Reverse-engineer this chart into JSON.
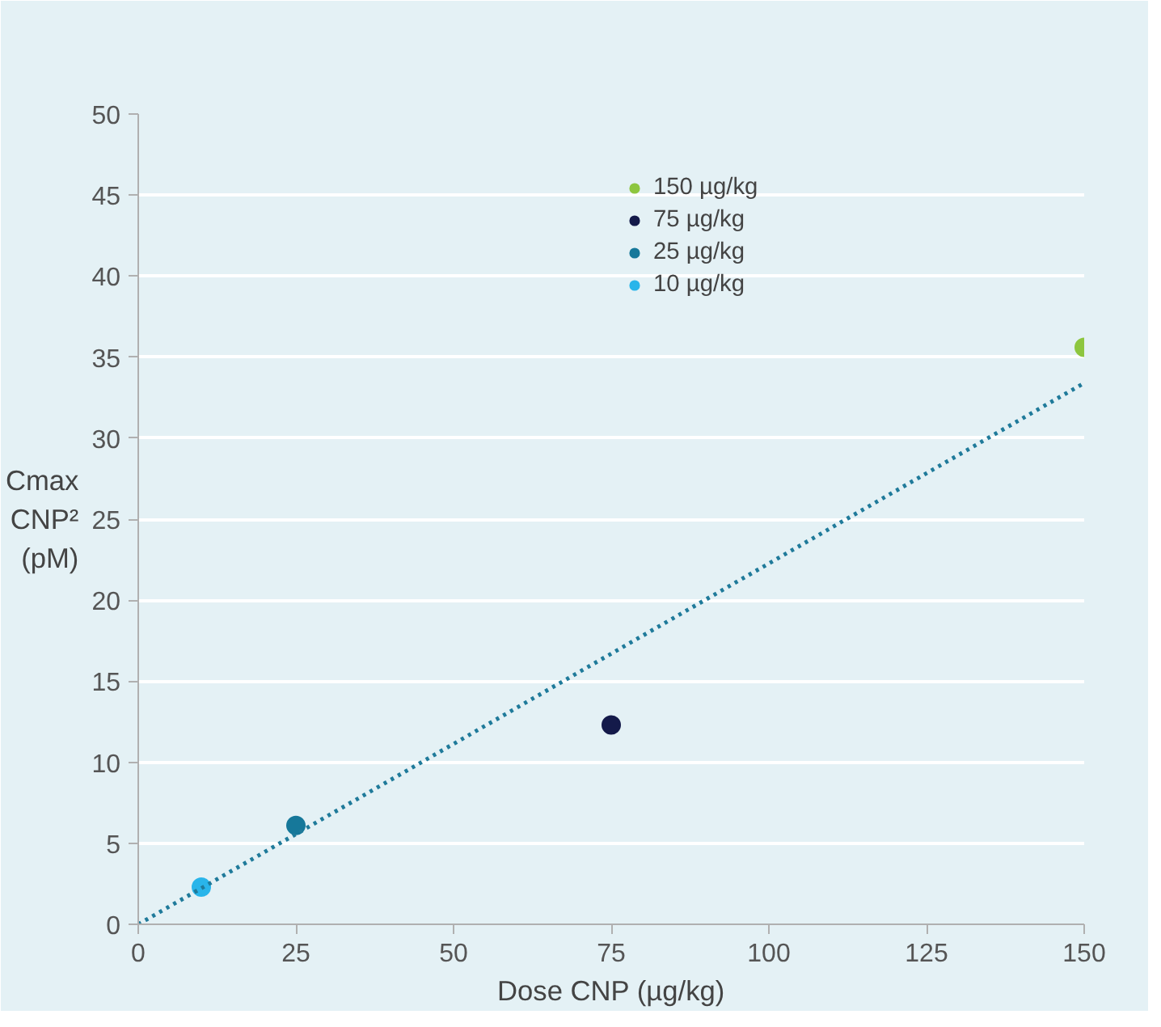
{
  "chart_data": {
    "type": "scatter",
    "xlabel": "Dose CNP (µg/kg)",
    "ylabel": "Cmax\nCNP²\n(pM)",
    "xlim": [
      0,
      150
    ],
    "xticks": [
      0,
      25,
      50,
      75,
      100,
      125,
      150
    ],
    "ylim": [
      0,
      50
    ],
    "yticks": [
      0,
      5,
      10,
      15,
      20,
      25,
      30,
      35,
      40,
      45,
      50
    ],
    "grid": "y",
    "legend": "top right",
    "marker": "circle",
    "series": [
      {
        "name": "150 µg/kg",
        "color": "#8dc63f",
        "x": [
          150
        ],
        "values": [
          35.6
        ]
      },
      {
        "name": "75 µg/kg",
        "color": "#141a4a",
        "x": [
          75
        ],
        "values": [
          12.3
        ]
      },
      {
        "name": "25 µg/kg",
        "color": "#16789a",
        "x": [
          25
        ],
        "values": [
          6.1
        ]
      },
      {
        "name": "10 µg/kg",
        "color": "#29b5ea",
        "x": [
          10
        ],
        "values": [
          2.3
        ]
      },
      {
        "type": "line",
        "color": "#1f7a9a",
        "line_style": "dotted",
        "marker": "none",
        "x": [
          0,
          150
        ],
        "values": [
          0,
          33.4
        ]
      }
    ]
  }
}
